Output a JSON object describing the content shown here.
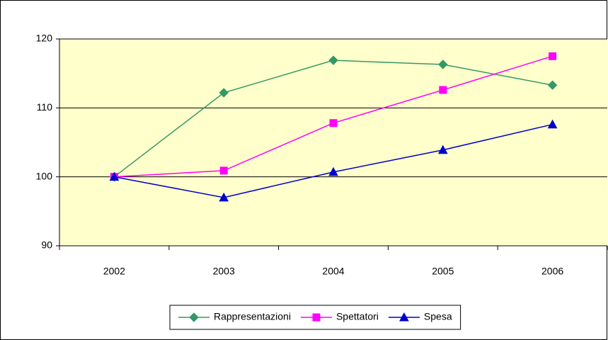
{
  "chart_data": {
    "type": "line",
    "categories": [
      "2002",
      "2003",
      "2004",
      "2005",
      "2006"
    ],
    "series": [
      {
        "name": "Rappresentazioni",
        "color": "#339966",
        "marker": "diamond",
        "values": [
          100,
          112.2,
          116.9,
          116.3,
          113.3
        ]
      },
      {
        "name": "Spettatori",
        "color": "#ff00ff",
        "marker": "square",
        "values": [
          100,
          100.9,
          107.8,
          112.6,
          117.5
        ]
      },
      {
        "name": "Spesa",
        "color": "#0000cc",
        "marker": "triangle",
        "values": [
          100,
          97.0,
          100.7,
          103.9,
          107.6
        ]
      }
    ],
    "ylim": [
      90,
      120
    ],
    "yticks": [
      90,
      100,
      110,
      120
    ],
    "grid": true,
    "plot_background": "#ffffcc",
    "legend": "bottom"
  }
}
